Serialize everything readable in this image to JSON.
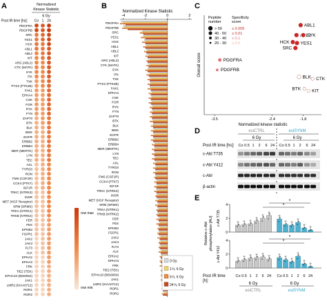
{
  "panel_labels": {
    "a": "A",
    "b": "B",
    "c": "C",
    "d": "D",
    "e": "E"
  },
  "colors": {
    "dot_max": "#c83a0d",
    "dot_mid": "#f08a4b",
    "dot_min": "#f7e7d8",
    "bar_ctrl": "#d9d9d9",
    "bar_1h": "#f2d26b",
    "bar_6h": "#ee8a3b",
    "bar_24h": "#c8471f",
    "esi_ctrl": "#9a9a9a",
    "esi_synm": "#2ea3c7",
    "spec_high": "#c62828",
    "spec_mid": "#e57373",
    "spec_low": "#f2b6a6"
  },
  "panel_a": {
    "header_title": "Normalized\nKinase Statistic",
    "dose": "6 Gy",
    "time_label": "Post IR time [hs]:",
    "columns": [
      "Co",
      "1",
      "24"
    ],
    "legend_max": "row max",
    "legend_min": "row min",
    "kinases": [
      "PDGFRA",
      "PDGFRB",
      "SRC",
      "YES1",
      "HCK",
      "ABL1",
      "ABL2",
      "KIT",
      "ARG (ABL2)",
      "CTK (MATK)",
      "SYK",
      "ITK",
      "TXK",
      "PYK2 (PTK2B)",
      "FAK1",
      "EPHA4",
      "CSK",
      "FGR",
      "RYK",
      "FYN",
      "ZAP70",
      "BTK",
      "BLK",
      "BMX",
      "EGFR",
      "ERBB2",
      "ERBB4",
      "MER (MERTK)",
      "LYN",
      "TEC",
      "AXL",
      "TYRO3",
      "RON",
      "FMS (CSF1R)",
      "CCK4 (PTK7)",
      "IGF1R",
      "TRKC (NTRK3)",
      "INSR",
      "MET (HGF Receptor)",
      "SRM (SRMS)",
      "TRKA (NTRK1)",
      "TRKB (NTRK2)",
      "FER",
      "FES",
      "EPHB3",
      "FGFR1",
      "JAK2",
      "JAK3",
      "FLT3",
      "ALK",
      "EPHA2",
      "EPHA3",
      "FRK",
      "TIE2 (TEK)",
      "EPHA10 (BIS6054)",
      "JAK1",
      "LMR2 (KIAA0712)",
      "ROR1",
      "ROR2"
    ]
  },
  "panel_b": {
    "title": "Normalized Kinase Statistic",
    "ticks": [
      "-4",
      "-2",
      "0",
      "2"
    ],
    "xlim": [
      -4.3,
      2.2
    ],
    "legend": [
      "0 Gy",
      "1 h, 6 Gy",
      "6 h, 6 Gy",
      "24 h, 6 Gy"
    ]
  },
  "panel_c": {
    "xlabel": "Normalized kinase statistic",
    "ylabel": "Overall score",
    "xticks": [
      "-3.5",
      "-2.4",
      "-1.8"
    ],
    "legend_peptide_title": "Peptide\nnumber",
    "legend_peptide": [
      "> 50",
      "40 - 50",
      "30 - 40",
      "20 - 30"
    ],
    "legend_spec_title": "Specificity\nscore",
    "legend_spec": [
      "≤ 0.005",
      "≤ 0.01",
      "≤ 0.1",
      "≤ 0.5"
    ],
    "points": [
      {
        "label": "ABL1",
        "x": -1.85,
        "y": 0.9,
        "size": 4,
        "color": "high"
      },
      {
        "label": "ABL2",
        "x": -1.93,
        "y": 0.8,
        "size": 4,
        "color": "high"
      },
      {
        "label": "SYK",
        "x": -1.8,
        "y": 0.8,
        "size": 4,
        "color": "high"
      },
      {
        "label": "HCK",
        "x": -2.0,
        "y": 0.73,
        "size": 4,
        "color": "high"
      },
      {
        "label": "YES1",
        "x": -1.92,
        "y": 0.72,
        "size": 4,
        "color": "high"
      },
      {
        "label": "SRC",
        "x": -1.95,
        "y": 0.67,
        "size": 4,
        "color": "high"
      },
      {
        "label": "PDGFRA",
        "x": -3.4,
        "y": 0.55,
        "size": 3,
        "color": "mid"
      },
      {
        "label": "PDGFRB",
        "x": -3.45,
        "y": 0.45,
        "size": 2,
        "color": "mid"
      },
      {
        "label": "BLK",
        "x": -1.88,
        "y": 0.38,
        "size": 3,
        "color": "low"
      },
      {
        "label": "CTK",
        "x": -1.62,
        "y": 0.36,
        "size": 2,
        "color": "low"
      },
      {
        "label": "BTK",
        "x": -1.78,
        "y": 0.26,
        "size": 2,
        "color": "low"
      },
      {
        "label": "KIT",
        "x": -1.7,
        "y": 0.24,
        "size": 2,
        "color": "low"
      }
    ]
  },
  "panel_d": {
    "groups": [
      "esiCTRL",
      "esiSYNM"
    ],
    "dose": "6 Gy",
    "time_label": "Post IR time [hs]:",
    "times": [
      "Co",
      "0.5",
      "1",
      "2",
      "6",
      "24"
    ],
    "rows": [
      "c-Abl T735",
      "c-Abl Y412",
      "c-Abl",
      "β-actin"
    ]
  },
  "panel_e": {
    "ylabel_main": "Relative c-Abl\nphosphorylation [AU]",
    "subplots": [
      {
        "label": "c-Abl T735",
        "ctrl": [
          1.0,
          1.1,
          1.2,
          1.6,
          2.0,
          2.4
        ],
        "synm": [
          1.9,
          1.1,
          1.0,
          1.4,
          0.6,
          0.3
        ]
      },
      {
        "label": "c-Abl Y412",
        "ctrl": [
          1.0,
          1.2,
          1.4,
          1.5,
          1.6,
          1.3
        ],
        "synm": [
          1.5,
          1.2,
          0.9,
          1.7,
          0.6,
          0.2
        ]
      }
    ],
    "yticks": [
      "0",
      "2",
      "4"
    ],
    "ymax": 4,
    "star": "*",
    "time_label": "Post IR time\n[h]:",
    "times": [
      "Co",
      "0.5",
      "1",
      "2",
      "6",
      "24"
    ],
    "dose": "6 Gy",
    "groups": [
      "esiCTRL",
      "esiSYNM"
    ]
  },
  "panel_b_values": {
    "rows": [
      [
        -4.2,
        -4.0,
        -4.3,
        -3.8
      ],
      [
        -4.0,
        -3.9,
        -4.1,
        -3.6
      ],
      [
        -2.2,
        -2.3,
        -2.5,
        -2.2
      ],
      [
        -2.1,
        -2.2,
        -2.4,
        -2.0
      ],
      [
        -2.1,
        -2.0,
        -2.3,
        -2.0
      ],
      [
        -2.0,
        -1.9,
        -2.2,
        -2.0
      ],
      [
        -1.9,
        -1.8,
        -2.1,
        -1.9
      ],
      [
        -1.9,
        -1.7,
        -2.0,
        -1.8
      ],
      [
        -1.8,
        -1.6,
        -1.9,
        -1.8
      ],
      [
        -1.8,
        -1.6,
        -1.9,
        -1.7
      ],
      [
        -1.8,
        -1.7,
        -2.0,
        -1.8
      ],
      [
        -1.7,
        -1.6,
        -1.9,
        -1.7
      ],
      [
        -1.6,
        -1.5,
        -1.8,
        -1.6
      ],
      [
        -1.6,
        -1.5,
        -1.8,
        -1.6
      ],
      [
        -1.6,
        -1.5,
        -1.8,
        -1.5
      ],
      [
        -1.5,
        -1.4,
        -1.7,
        -1.5
      ],
      [
        -1.5,
        -1.4,
        -1.7,
        -1.5
      ],
      [
        -1.5,
        -1.4,
        -1.7,
        -1.5
      ],
      [
        -1.4,
        -1.3,
        -1.6,
        -1.4
      ],
      [
        -1.4,
        -1.3,
        -1.6,
        -1.4
      ],
      [
        -1.4,
        -1.3,
        -1.6,
        -1.4
      ],
      [
        -1.4,
        -1.3,
        -1.6,
        -1.3
      ],
      [
        -1.3,
        -1.3,
        -1.5,
        -1.3
      ],
      [
        -1.3,
        -1.2,
        -1.5,
        -1.3
      ],
      [
        -1.3,
        -1.2,
        -1.5,
        -1.3
      ],
      [
        -1.3,
        -1.2,
        -1.5,
        -1.3
      ],
      [
        -1.2,
        -1.1,
        -1.4,
        -1.2
      ],
      [
        -1.2,
        -1.1,
        -1.4,
        -1.2
      ],
      [
        -1.2,
        -1.1,
        -1.4,
        -1.2
      ],
      [
        -1.2,
        -1.1,
        -1.4,
        -1.2
      ],
      [
        -1.1,
        -1.0,
        -1.3,
        -1.1
      ],
      [
        -1.1,
        -1.0,
        -1.3,
        -1.1
      ],
      [
        -1.1,
        -1.0,
        -1.3,
        -1.1
      ],
      [
        -1.1,
        -1.0,
        -1.2,
        -1.1
      ],
      [
        -1.0,
        -0.9,
        -1.2,
        -1.0
      ],
      [
        -1.0,
        -0.9,
        -1.2,
        -1.0
      ],
      [
        -1.0,
        -0.9,
        -1.2,
        -1.0
      ],
      [
        -1.0,
        -0.9,
        -1.1,
        -1.0
      ],
      [
        -0.9,
        -0.8,
        -1.1,
        -0.9
      ],
      [
        -0.9,
        -0.8,
        -1.1,
        -0.9
      ],
      [
        -0.9,
        -0.8,
        -1.0,
        -0.9
      ],
      [
        -0.9,
        -0.8,
        -1.0,
        -0.9
      ],
      [
        -0.8,
        -0.7,
        -1.0,
        -0.8
      ],
      [
        -0.8,
        -0.7,
        -1.0,
        -0.8
      ],
      [
        -0.8,
        -0.7,
        -0.9,
        -0.8
      ],
      [
        -0.8,
        -0.7,
        -0.9,
        -0.8
      ],
      [
        -0.7,
        -0.6,
        -0.9,
        -0.7
      ],
      [
        -0.7,
        -0.6,
        -0.8,
        -0.7
      ],
      [
        -0.7,
        -0.6,
        -0.8,
        -0.7
      ],
      [
        -0.6,
        -0.5,
        -0.8,
        -0.6
      ],
      [
        -0.6,
        -0.5,
        -0.7,
        -0.6
      ],
      [
        -0.6,
        -0.5,
        -0.7,
        -0.6
      ],
      [
        -0.5,
        -0.5,
        -0.7,
        -0.5
      ],
      [
        -0.5,
        -0.4,
        -0.6,
        -0.5
      ],
      [
        -0.5,
        -0.4,
        -0.6,
        -0.5
      ],
      [
        -0.5,
        -0.4,
        -0.6,
        -0.5
      ],
      [
        -0.4,
        -0.4,
        -0.5,
        -0.4
      ],
      [
        -0.4,
        -0.3,
        -0.5,
        -0.4
      ],
      [
        -0.4,
        -0.3,
        -0.5,
        -0.4
      ]
    ],
    "panel_a_levels": [
      [
        0.9,
        0.8,
        1.0
      ],
      [
        0.9,
        0.8,
        1.0
      ],
      [
        0.6,
        0.7,
        0.9
      ],
      [
        0.6,
        0.7,
        0.9
      ],
      [
        0.6,
        0.6,
        0.9
      ],
      [
        0.6,
        0.6,
        0.8
      ],
      [
        0.5,
        0.6,
        0.8
      ],
      [
        0.5,
        0.6,
        0.8
      ],
      [
        0.5,
        0.5,
        0.8
      ],
      [
        0.5,
        0.5,
        0.8
      ],
      [
        0.5,
        0.5,
        0.8
      ],
      [
        0.5,
        0.5,
        0.8
      ],
      [
        0.4,
        0.5,
        0.7
      ],
      [
        0.4,
        0.5,
        0.7
      ],
      [
        0.4,
        0.4,
        0.7
      ],
      [
        0.4,
        0.4,
        0.7
      ],
      [
        0.4,
        0.4,
        0.7
      ],
      [
        0.4,
        0.4,
        0.7
      ],
      [
        0.4,
        0.4,
        0.7
      ],
      [
        0.4,
        0.4,
        0.7
      ],
      [
        0.3,
        0.4,
        0.6
      ],
      [
        0.3,
        0.4,
        0.6
      ],
      [
        0.3,
        0.3,
        0.6
      ],
      [
        0.3,
        0.3,
        0.6
      ],
      [
        0.3,
        0.3,
        0.6
      ],
      [
        0.3,
        0.3,
        0.6
      ],
      [
        0.3,
        0.3,
        0.6
      ],
      [
        0.3,
        0.3,
        0.6
      ],
      [
        0.3,
        0.3,
        0.6
      ],
      [
        0.3,
        0.3,
        0.6
      ],
      [
        0.2,
        0.3,
        0.5
      ],
      [
        0.2,
        0.3,
        0.5
      ],
      [
        0.2,
        0.3,
        0.5
      ],
      [
        0.2,
        0.3,
        0.5
      ],
      [
        0.2,
        0.3,
        0.5
      ],
      [
        0.2,
        0.3,
        0.5
      ],
      [
        0.2,
        0.2,
        0.5
      ],
      [
        0.2,
        0.2,
        0.5
      ],
      [
        0.2,
        0.2,
        0.5
      ],
      [
        0.2,
        0.2,
        0.5
      ],
      [
        0.2,
        0.2,
        0.5
      ],
      [
        0.2,
        0.2,
        0.5
      ],
      [
        0.2,
        0.2,
        0.4
      ],
      [
        0.2,
        0.2,
        0.4
      ],
      [
        0.2,
        0.2,
        0.4
      ],
      [
        0.2,
        0.2,
        0.4
      ],
      [
        0.1,
        0.2,
        0.4
      ],
      [
        0.1,
        0.2,
        0.4
      ],
      [
        0.1,
        0.2,
        0.4
      ],
      [
        0.1,
        0.2,
        0.4
      ],
      [
        0.1,
        0.1,
        0.4
      ],
      [
        0.1,
        0.1,
        0.4
      ],
      [
        0.1,
        0.1,
        0.3
      ],
      [
        0.1,
        0.1,
        0.3
      ],
      [
        0.1,
        0.1,
        0.3
      ],
      [
        0.1,
        0.1,
        0.3
      ],
      [
        0.1,
        0.1,
        0.3
      ],
      [
        0.1,
        0.1,
        0.3
      ],
      [
        0.1,
        0.1,
        0.3
      ]
    ]
  }
}
